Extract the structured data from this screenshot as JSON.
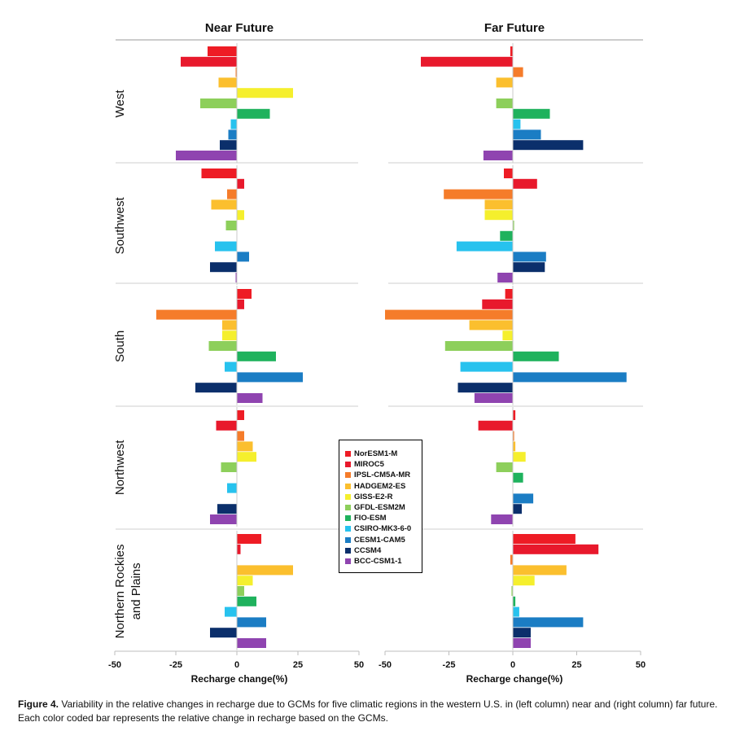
{
  "chart_data": {
    "type": "bar",
    "orientation": "horizontal",
    "columns": [
      "Near Future",
      "Far Future"
    ],
    "xlabel": "Recharge change(%)",
    "xlim": [
      -50,
      50
    ],
    "xticks": [
      "-50",
      "-25",
      "0",
      "25",
      "50"
    ],
    "legend_position": "center",
    "grid": false,
    "regions": [
      {
        "name": "West",
        "near": [
          -12,
          -23,
          -0.5,
          -7.5,
          23,
          -15,
          13.5,
          -2.5,
          -3.5,
          -7,
          -25
        ],
        "far": [
          -1,
          -36,
          4,
          -6.5,
          0,
          -6.5,
          14.5,
          3,
          11,
          27.5,
          -11.5
        ]
      },
      {
        "name": "Southwest",
        "near": [
          -14.5,
          3,
          -4,
          -10.5,
          3,
          -4.5,
          0,
          -9,
          5,
          -11,
          -0.5
        ],
        "far": [
          -3.5,
          9.5,
          -27,
          -11,
          -11,
          0.5,
          -5,
          -22,
          13,
          12.5,
          -6
        ]
      },
      {
        "name": "South",
        "near": [
          6,
          3,
          -33,
          -6,
          -6,
          -11.5,
          16,
          -5,
          27,
          -17,
          10.5
        ],
        "far": [
          -3,
          -12,
          -50,
          -17,
          -4,
          -26.5,
          18,
          -20.5,
          44.5,
          -21.5,
          -15
        ]
      },
      {
        "name": "Northwest",
        "near": [
          3,
          -8.5,
          3,
          6.5,
          8,
          -6.5,
          0,
          -4,
          0,
          -8,
          -11
        ],
        "far": [
          1,
          -13.5,
          0.5,
          1,
          5,
          -6.5,
          4,
          0,
          8,
          3.5,
          -8.5
        ]
      },
      {
        "name": "Northern Rockies and Plains",
        "near": [
          10,
          1.5,
          0,
          23,
          6.5,
          3,
          8,
          -5,
          12,
          -11,
          12
        ],
        "far": [
          24.5,
          33.5,
          -1,
          21,
          8.5,
          -0.5,
          1,
          2.5,
          27.5,
          7,
          7
        ]
      }
    ],
    "series": [
      {
        "name": "NorESM1-M",
        "color": "#ee1c25"
      },
      {
        "name": "MIROC5",
        "color": "#e8192c"
      },
      {
        "name": "IPSL-CM5A-MR",
        "color": "#f57c2a"
      },
      {
        "name": "HADGEM2-ES",
        "color": "#fbbf2e"
      },
      {
        "name": "GISS-E2-R",
        "color": "#f5ef2d"
      },
      {
        "name": "GFDL-ESM2M",
        "color": "#8dcf5b"
      },
      {
        "name": "FIO-ESM",
        "color": "#1fb25d"
      },
      {
        "name": "CSIRO-MK3-6-0",
        "color": "#27c2ee"
      },
      {
        "name": "CESM1-CAM5",
        "color": "#1b7dc4"
      },
      {
        "name": "CCSM4",
        "color": "#0b2f6b"
      },
      {
        "name": "BCC-CSM1-1",
        "color": "#8f44b0"
      }
    ]
  },
  "caption": {
    "label": "Figure 4.",
    "text": " Variability in the relative changes in recharge due to GCMs for five climatic regions in the western U.S. in (left column) near and (right column) far future. Each color coded bar represents the relative change in recharge based on the GCMs."
  }
}
